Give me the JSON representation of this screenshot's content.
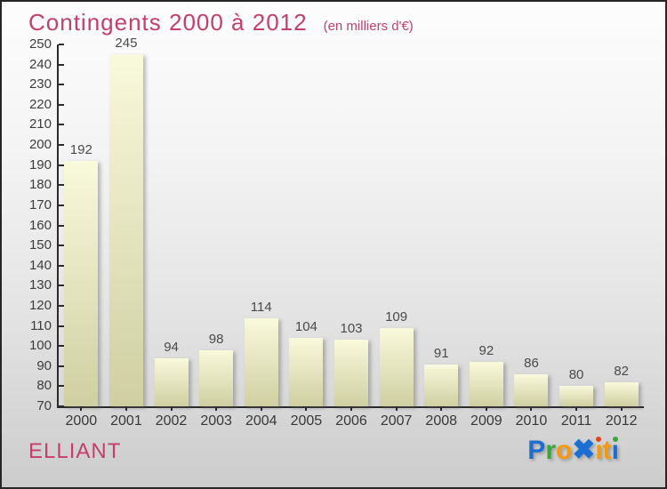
{
  "header": {
    "title": "Contingents 2000 à 2012",
    "subtitle": "(en milliers d'€)"
  },
  "footer": {
    "commune": "ELLIANT"
  },
  "logo": {
    "name": "Proxiti",
    "letters": [
      {
        "ch": "P",
        "color": "#1b6fd2"
      },
      {
        "ch": "r",
        "color": "#3aa63c"
      },
      {
        "ch": "o",
        "color": "#f39a0f"
      },
      {
        "ch": "✖",
        "color": "#1b6fd2",
        "x": true
      },
      {
        "ch": "ı",
        "color": "#f39a0f",
        "dot": "#e0451f"
      },
      {
        "ch": "t",
        "color": "#f39a0f"
      },
      {
        "ch": "ı",
        "color": "#1b6fd2",
        "dot": "#3aa63c"
      }
    ]
  },
  "colors": {
    "accent_pink": "#c2406b",
    "axis": "#2b2b2b",
    "tick_label": "#3c3c3c",
    "value_label": "#4a4a4a",
    "bar_gradient_top": "#f9f9dc",
    "bar_gradient_bottom": "#cfcfa2",
    "background_top": "#fdfdfd",
    "background_bottom": "#cccccc"
  },
  "chart_data": {
    "type": "bar",
    "title": "Contingents 2000 à 2012",
    "subtitle": "(en milliers d'€)",
    "categories": [
      "2000",
      "2001",
      "2002",
      "2003",
      "2004",
      "2005",
      "2006",
      "2007",
      "2008",
      "2009",
      "2010",
      "2011",
      "2012"
    ],
    "values": [
      192,
      245,
      94,
      98,
      114,
      104,
      103,
      109,
      91,
      92,
      86,
      80,
      82
    ],
    "xlabel": "",
    "ylabel": "",
    "ylim": [
      70,
      250
    ],
    "ytick_step": 10,
    "yticks": [
      70,
      80,
      90,
      100,
      110,
      120,
      130,
      140,
      150,
      160,
      170,
      180,
      190,
      200,
      210,
      220,
      230,
      240,
      250
    ],
    "grid": false,
    "legend": false,
    "value_labels": true
  }
}
